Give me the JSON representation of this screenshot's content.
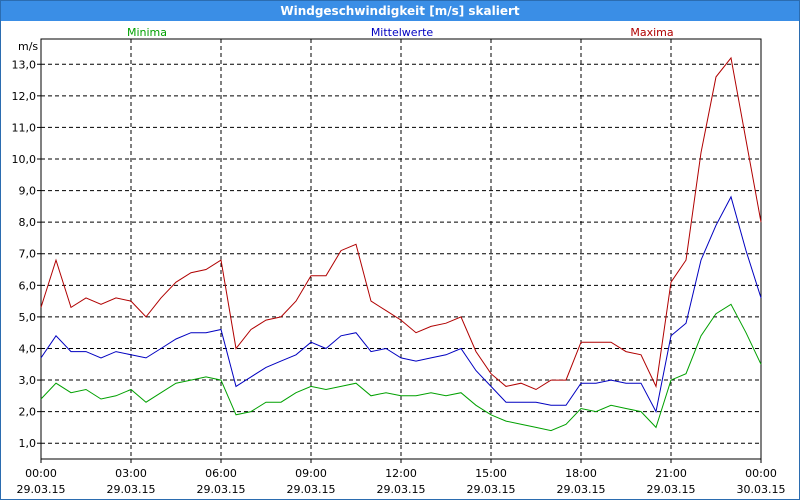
{
  "window": {
    "title": "Windgeschwindigkeit [m/s] skaliert"
  },
  "chart_data": {
    "type": "line",
    "title": "Windgeschwindigkeit [m/s] skaliert",
    "ylabel": "m/s",
    "ylim": [
      0.5,
      13.8
    ],
    "grid": true,
    "legend_position": "top",
    "y_ticks": [
      "1,0",
      "2,0",
      "3,0",
      "4,0",
      "5,0",
      "6,0",
      "7,0",
      "8,0",
      "9,0",
      "10,0",
      "11,0",
      "12,0",
      "13,0"
    ],
    "x_ticks": [
      {
        "time": "00:00",
        "date": "29.03.15"
      },
      {
        "time": "03:00",
        "date": "29.03.15"
      },
      {
        "time": "06:00",
        "date": "29.03.15"
      },
      {
        "time": "09:00",
        "date": "29.03.15"
      },
      {
        "time": "12:00",
        "date": "29.03.15"
      },
      {
        "time": "15:00",
        "date": "29.03.15"
      },
      {
        "time": "18:00",
        "date": "29.03.15"
      },
      {
        "time": "21:00",
        "date": "29.03.15"
      },
      {
        "time": "00:00",
        "date": "30.03.15"
      }
    ],
    "x_hours": [
      0,
      0.5,
      1,
      1.5,
      2,
      2.5,
      3,
      3.5,
      4,
      4.5,
      5,
      5.5,
      6,
      6.5,
      7,
      7.5,
      8,
      8.5,
      9,
      9.5,
      10,
      10.5,
      11,
      11.5,
      12,
      12.5,
      13,
      13.5,
      14,
      14.5,
      15,
      15.5,
      16,
      16.5,
      17,
      17.5,
      18,
      18.5,
      19,
      19.5,
      20,
      20.5,
      21,
      21.5,
      22,
      22.5,
      23,
      23.5,
      24
    ],
    "series": [
      {
        "name": "Minima",
        "color": "#00a000",
        "values": [
          2.4,
          2.9,
          2.6,
          2.7,
          2.4,
          2.5,
          2.7,
          2.3,
          2.6,
          2.9,
          3.0,
          3.1,
          3.0,
          1.9,
          2.0,
          2.3,
          2.3,
          2.6,
          2.8,
          2.7,
          2.8,
          2.9,
          2.5,
          2.6,
          2.5,
          2.5,
          2.6,
          2.5,
          2.6,
          2.2,
          1.9,
          1.7,
          1.6,
          1.5,
          1.4,
          1.6,
          2.1,
          2.0,
          2.2,
          2.1,
          2.0,
          1.5,
          3.0,
          3.2,
          4.4,
          5.1,
          5.4,
          4.5,
          3.5
        ]
      },
      {
        "name": "Mittelwerte",
        "color": "#0000c0",
        "values": [
          3.7,
          4.4,
          3.9,
          3.9,
          3.7,
          3.9,
          3.8,
          3.7,
          4.0,
          4.3,
          4.5,
          4.5,
          4.6,
          2.8,
          3.1,
          3.4,
          3.6,
          3.8,
          4.2,
          4.0,
          4.4,
          4.5,
          3.9,
          4.0,
          3.7,
          3.6,
          3.7,
          3.8,
          4.0,
          3.3,
          2.8,
          2.3,
          2.3,
          2.3,
          2.2,
          2.2,
          2.9,
          2.9,
          3.0,
          2.9,
          2.9,
          2.0,
          4.4,
          4.8,
          6.8,
          7.9,
          8.8,
          7.1,
          5.6
        ]
      },
      {
        "name": "Maxima",
        "color": "#b00000",
        "values": [
          5.3,
          6.8,
          5.3,
          5.6,
          5.4,
          5.6,
          5.5,
          5.0,
          5.6,
          6.1,
          6.4,
          6.5,
          6.8,
          4.0,
          4.6,
          4.9,
          5.0,
          5.5,
          6.3,
          6.3,
          7.1,
          7.3,
          5.5,
          5.2,
          4.9,
          4.5,
          4.7,
          4.8,
          5.0,
          3.9,
          3.2,
          2.8,
          2.9,
          2.7,
          3.0,
          3.0,
          4.2,
          4.2,
          4.2,
          3.9,
          3.8,
          2.8,
          6.1,
          6.8,
          10.2,
          12.6,
          13.2,
          10.6,
          8.0
        ]
      }
    ]
  }
}
